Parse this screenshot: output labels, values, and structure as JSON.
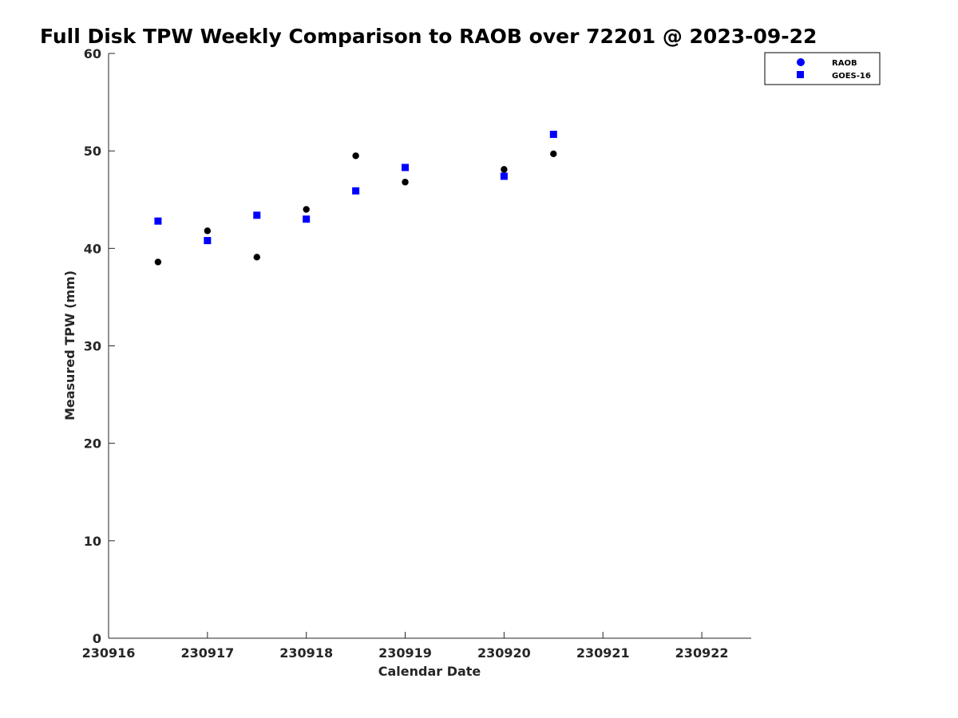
{
  "chart_data": {
    "type": "scatter",
    "title": "Full Disk TPW Weekly Comparison to RAOB over 72201 @ 2023-09-22",
    "xlabel": "Calendar Date",
    "ylabel": "Measured TPW (mm)",
    "xlim": [
      "2023-09-16",
      "2023-09-22 12:00"
    ],
    "ylim": [
      0,
      60
    ],
    "x_tick_labels": [
      "230916",
      "230917",
      "230918",
      "230919",
      "230920",
      "230921",
      "230922"
    ],
    "y_tick_labels": [
      "0",
      "10",
      "20",
      "30",
      "40",
      "50",
      "60"
    ],
    "grid": false,
    "legend_position": "top-right",
    "series": [
      {
        "name": "RAOB",
        "marker": "circle",
        "color": "#000000",
        "legend_color": "#0000ff",
        "points": [
          {
            "x": "2023-09-16 12:00",
            "y": 38.6
          },
          {
            "x": "2023-09-17 00:00",
            "y": 41.8
          },
          {
            "x": "2023-09-17 12:00",
            "y": 39.1
          },
          {
            "x": "2023-09-18 00:00",
            "y": 44.0
          },
          {
            "x": "2023-09-18 12:00",
            "y": 49.5
          },
          {
            "x": "2023-09-19 00:00",
            "y": 46.8
          },
          {
            "x": "2023-09-20 00:00",
            "y": 48.1
          },
          {
            "x": "2023-09-20 12:00",
            "y": 49.7
          }
        ]
      },
      {
        "name": "GOES-16",
        "marker": "square",
        "color": "#0000ff",
        "legend_color": "#0000ff",
        "points": [
          {
            "x": "2023-09-16 12:00",
            "y": 42.8
          },
          {
            "x": "2023-09-17 00:00",
            "y": 40.8
          },
          {
            "x": "2023-09-17 12:00",
            "y": 43.4
          },
          {
            "x": "2023-09-18 00:00",
            "y": 43.0
          },
          {
            "x": "2023-09-18 12:00",
            "y": 45.9
          },
          {
            "x": "2023-09-19 00:00",
            "y": 48.3
          },
          {
            "x": "2023-09-20 00:00",
            "y": 47.4
          },
          {
            "x": "2023-09-20 12:00",
            "y": 51.7
          }
        ]
      }
    ]
  }
}
